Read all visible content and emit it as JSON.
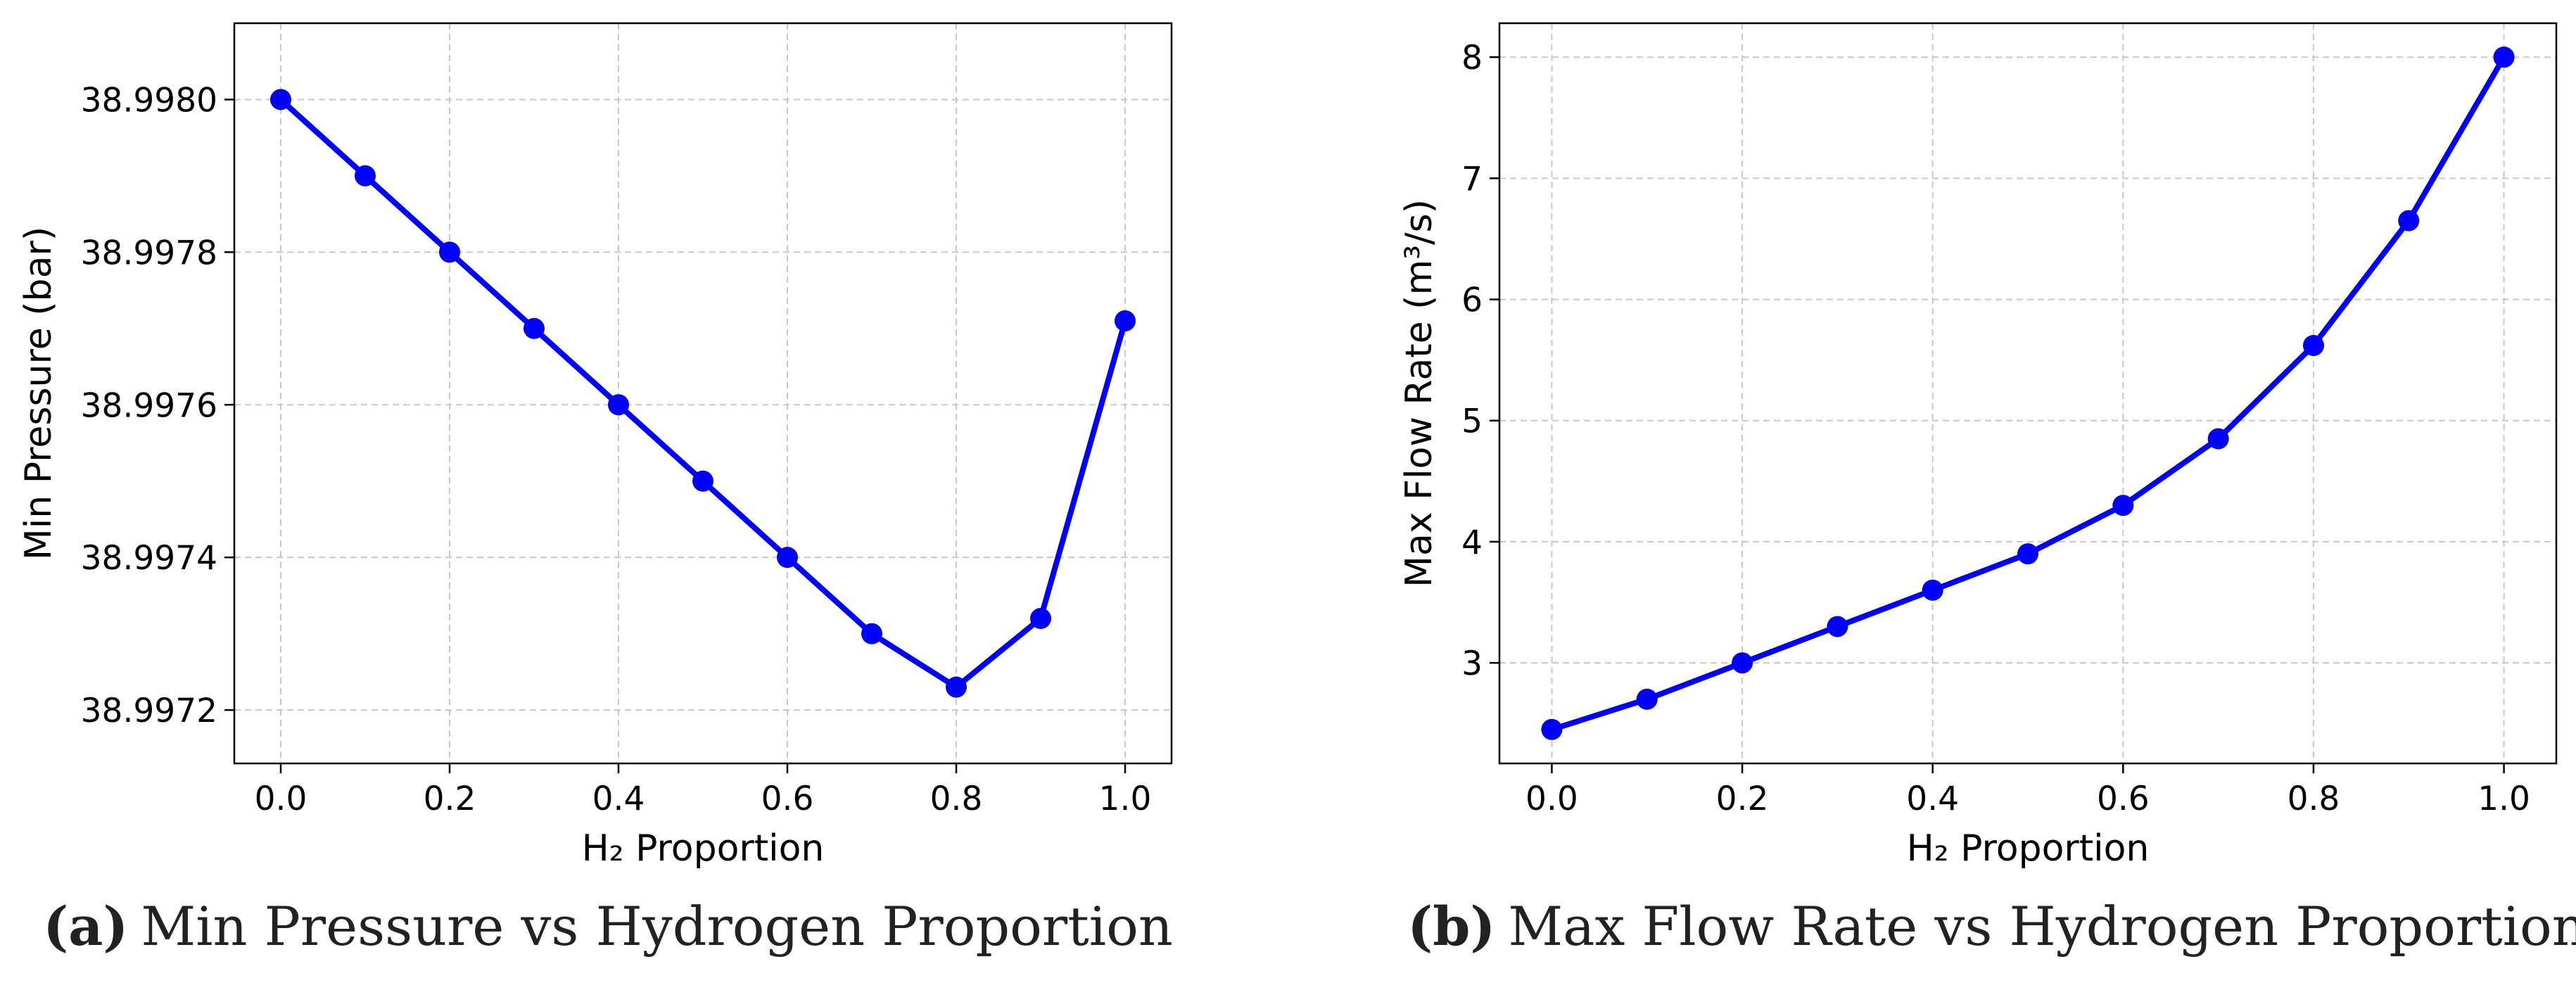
{
  "chart_data": [
    {
      "type": "line",
      "xlabel": "H₂ Proportion",
      "ylabel": "Min Pressure (bar)",
      "x": [
        0.0,
        0.1,
        0.2,
        0.3,
        0.4,
        0.5,
        0.6,
        0.7,
        0.8,
        0.9,
        1.0
      ],
      "series": [
        {
          "values": [
            38.998,
            38.9979,
            38.9978,
            38.9977,
            38.9976,
            38.9975,
            38.9974,
            38.9973,
            38.99723,
            38.99732,
            38.99771
          ],
          "color": "#0000ff"
        }
      ],
      "xlim": [
        -0.055,
        1.055
      ],
      "ylim": [
        38.99713,
        38.9981
      ],
      "xticks": [
        0.0,
        0.2,
        0.4,
        0.6,
        0.8,
        1.0
      ],
      "xtick_labels": [
        "0.0",
        "0.2",
        "0.4",
        "0.6",
        "0.8",
        "1.0"
      ],
      "yticks": [
        38.9972,
        38.9974,
        38.9976,
        38.9978,
        38.998
      ],
      "ytick_labels": [
        "38.9972",
        "38.9974",
        "38.9976",
        "38.9978",
        "38.9980"
      ],
      "grid": true,
      "caption_letter": "(a)",
      "caption_text": "Min Pressure vs Hydrogen Proportion"
    },
    {
      "type": "line",
      "xlabel": "H₂ Proportion",
      "ylabel": "Max Flow Rate (m³/s)",
      "x": [
        0.0,
        0.1,
        0.2,
        0.3,
        0.4,
        0.5,
        0.6,
        0.7,
        0.8,
        0.9,
        1.0
      ],
      "series": [
        {
          "values": [
            2.45,
            2.7,
            3.0,
            3.3,
            3.6,
            3.9,
            4.3,
            4.85,
            5.62,
            6.65,
            8.0
          ],
          "color": "#0000ff"
        }
      ],
      "xlim": [
        -0.055,
        1.055
      ],
      "ylim": [
        2.17,
        8.28
      ],
      "xticks": [
        0.0,
        0.2,
        0.4,
        0.6,
        0.8,
        1.0
      ],
      "xtick_labels": [
        "0.0",
        "0.2",
        "0.4",
        "0.6",
        "0.8",
        "1.0"
      ],
      "yticks": [
        3,
        4,
        5,
        6,
        7,
        8
      ],
      "ytick_labels": [
        "3",
        "4",
        "5",
        "6",
        "7",
        "8"
      ],
      "grid": true,
      "caption_letter": "(b)",
      "caption_text": "Max Flow Rate vs Hydrogen Proportion"
    }
  ]
}
